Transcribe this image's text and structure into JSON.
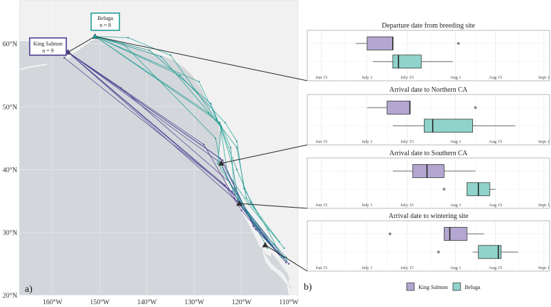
{
  "colors": {
    "king_salmon": "#b3a7d1",
    "beluga": "#8fd3cb",
    "king_salmon_track": "#4b3a8f",
    "beluga_track": "#1d9c94",
    "land": "#f2f2f2",
    "water": "#d3d7db"
  },
  "panel_a": {
    "label": "a)",
    "sites": [
      {
        "name": "Beluga",
        "n_label": "n = 8"
      },
      {
        "name": "King Salmon",
        "n_label": "n = 9"
      }
    ]
  },
  "panel_b": {
    "label": "b)",
    "legend": [
      "King Salmon",
      "Beluga"
    ]
  },
  "chart_data": [
    {
      "type": "map",
      "xlabel": "",
      "ylabel": "",
      "x_ticks": [
        "160°W",
        "150°W",
        "140°W",
        "130°W",
        "120°W",
        "110°W"
      ],
      "x_tick_values": [
        -160,
        -150,
        -140,
        -130,
        -120,
        -110
      ],
      "y_ticks": [
        "20°N",
        "30°N",
        "40°N",
        "50°N",
        "60°N"
      ],
      "y_tick_values": [
        20,
        30,
        40,
        50,
        60
      ],
      "xlim": [
        -167,
        -108
      ],
      "ylim": [
        20,
        67
      ],
      "breeding_sites": [
        {
          "name": "Beluga",
          "lon": -151.0,
          "lat": 61.2
        },
        {
          "name": "King Salmon",
          "lon": -156.7,
          "lat": 58.7
        }
      ],
      "stopovers": [
        {
          "name": "Northern CA",
          "lon": -124.3,
          "lat": 41.0
        },
        {
          "name": "Southern CA",
          "lon": -120.5,
          "lat": 34.6
        },
        {
          "name": "wintering site",
          "lon": -115.0,
          "lat": 28.0
        }
      ],
      "series": [
        {
          "name": "King Salmon",
          "tracks": [
            [
              [
                -156.7,
                58.7
              ],
              [
                -124.0,
                41.5
              ],
              [
                -117.5,
                31.0
              ],
              [
                -110.6,
                25.2
              ]
            ],
            [
              [
                -156.7,
                58.7
              ],
              [
                -121.0,
                35.0
              ],
              [
                -112.5,
                27.0
              ]
            ],
            [
              [
                -156.7,
                58.7
              ],
              [
                -145.5,
                53.0
              ],
              [
                -122.5,
                38.0
              ],
              [
                -116.0,
                30.0
              ],
              [
                -110.0,
                25.0
              ]
            ],
            [
              [
                -156.7,
                58.7
              ],
              [
                -124.3,
                41.0
              ],
              [
                -120.5,
                34.6
              ],
              [
                -113.5,
                27.8
              ]
            ],
            [
              [
                -156.7,
                58.7
              ],
              [
                -124.5,
                41.8
              ],
              [
                -117.0,
                30.5
              ],
              [
                -110.5,
                25.5
              ]
            ],
            [
              [
                -156.7,
                58.7
              ],
              [
                -123.5,
                37.5
              ],
              [
                -120.0,
                33.5
              ],
              [
                -112.0,
                26.5
              ]
            ],
            [
              [
                -156.7,
                58.7
              ],
              [
                -128.0,
                44.0
              ],
              [
                -121.5,
                35.5
              ],
              [
                -115.0,
                29.0
              ]
            ],
            [
              [
                -156.7,
                58.7
              ],
              [
                -121.5,
                36.0
              ],
              [
                -114.5,
                28.5
              ]
            ],
            [
              [
                -157.5,
                57.8
              ],
              [
                -122.0,
                36.5
              ],
              [
                -111.0,
                26.0
              ]
            ]
          ]
        },
        {
          "name": "Beluga",
          "tracks": [
            [
              [
                -151.0,
                61.2
              ],
              [
                -124.6,
                47.5
              ],
              [
                -122.3,
                43.5
              ],
              [
                -121.5,
                37.0
              ],
              [
                -114.5,
                27.5
              ]
            ],
            [
              [
                -151.0,
                61.2
              ],
              [
                -137.0,
                58.0
              ],
              [
                -124.5,
                47.0
              ],
              [
                -121.0,
                40.0
              ],
              [
                -118.0,
                34.8
              ],
              [
                -114.5,
                30.5
              ],
              [
                -111.5,
                26.0
              ]
            ],
            [
              [
                -151.0,
                61.2
              ],
              [
                -144.0,
                61.0
              ],
              [
                -135.0,
                58.2
              ],
              [
                -124.3,
                46.9
              ],
              [
                -125.0,
                41.0
              ],
              [
                -120.0,
                34.7
              ],
              [
                -113.5,
                28.0
              ]
            ],
            [
              [
                -151.0,
                61.2
              ],
              [
                -133.0,
                55.0
              ],
              [
                -123.5,
                47.5
              ],
              [
                -121.0,
                44.5
              ],
              [
                -119.5,
                37.0
              ],
              [
                -116.5,
                33.0
              ]
            ],
            [
              [
                -151.0,
                61.2
              ],
              [
                -127.0,
                49.0
              ],
              [
                -124.5,
                47.0
              ],
              [
                -123.0,
                39.5
              ],
              [
                -118.5,
                34.5
              ],
              [
                -111.0,
                27.5
              ]
            ],
            [
              [
                -151.0,
                61.2
              ],
              [
                -145.0,
                60.0
              ],
              [
                -125.5,
                45.0
              ],
              [
                -124.5,
                41.0
              ],
              [
                -120.5,
                34.7
              ],
              [
                -114.5,
                28.5
              ],
              [
                -110.5,
                25.5
              ]
            ],
            [
              [
                -151.0,
                61.2
              ],
              [
                -129.0,
                54.0
              ],
              [
                -124.7,
                47.2
              ],
              [
                -121.0,
                43.5
              ],
              [
                -119.0,
                35.5
              ],
              [
                -112.0,
                28.5
              ]
            ],
            [
              [
                -151.0,
                61.2
              ],
              [
                -139.5,
                59.0
              ],
              [
                -126.5,
                50.5
              ],
              [
                -124.3,
                46.5
              ],
              [
                -122.0,
                41.0
              ],
              [
                -120.5,
                34.6
              ],
              [
                -116.0,
                30.5
              ],
              [
                -110.5,
                26.0
              ]
            ]
          ]
        }
      ]
    },
    {
      "type": "boxplot",
      "orientation": "horizontal",
      "xlabel": "",
      "ylabel": "",
      "x_ticks": [
        "Jun 15",
        "July 1",
        "July 15",
        "Aug 1",
        "Aug 15",
        "Sept 1"
      ],
      "x_tick_values": [
        "06-15",
        "07-01",
        "07-15",
        "08-01",
        "08-15",
        "09-01"
      ],
      "xlim": [
        "06-10",
        "09-03"
      ],
      "grid": true,
      "legend": {
        "position": "bottom",
        "entries": [
          "King Salmon",
          "Beluga"
        ]
      },
      "facets": [
        {
          "title": "Departure date from breeding site",
          "series": [
            {
              "name": "King Salmon",
              "whisker_low": "06-27",
              "q1": "07-01",
              "median": "07-10",
              "q3": "07-10",
              "whisker_high": "07-10",
              "outliers": [
                "08-02"
              ]
            },
            {
              "name": "Beluga",
              "whisker_low": "07-03",
              "q1": "07-10",
              "median": "07-12",
              "q3": "07-20",
              "whisker_high": "07-31",
              "outliers": []
            }
          ]
        },
        {
          "title": "Arrival date to Northern CA",
          "series": [
            {
              "name": "King Salmon",
              "whisker_low": "07-01",
              "q1": "07-08",
              "median": "07-16",
              "q3": "07-16",
              "whisker_high": "07-16",
              "outliers": [
                "08-08"
              ]
            },
            {
              "name": "Beluga",
              "whisker_low": "07-10",
              "q1": "07-21",
              "median": "07-24",
              "q3": "08-07",
              "whisker_high": "08-22",
              "outliers": []
            }
          ]
        },
        {
          "title": "Arrival date to Southern CA",
          "series": [
            {
              "name": "King Salmon",
              "whisker_low": "07-10",
              "q1": "07-17",
              "median": "07-22",
              "q3": "07-28",
              "whisker_high": "08-08",
              "outliers": []
            },
            {
              "name": "Beluga",
              "whisker_low": "08-05",
              "q1": "08-05",
              "median": "08-09",
              "q3": "08-13",
              "whisker_high": "08-15",
              "outliers": [
                "07-28"
              ]
            }
          ]
        },
        {
          "title": "Arrival date to wintering site",
          "series": [
            {
              "name": "King Salmon",
              "whisker_low": "07-28",
              "q1": "07-28",
              "median": "07-30",
              "q3": "08-05",
              "whisker_high": "08-11",
              "outliers": [
                "07-09"
              ]
            },
            {
              "name": "Beluga",
              "whisker_low": "08-07",
              "q1": "08-09",
              "median": "08-16",
              "q3": "08-17",
              "whisker_high": "08-23",
              "outliers": [
                "07-26"
              ]
            }
          ]
        }
      ]
    }
  ]
}
